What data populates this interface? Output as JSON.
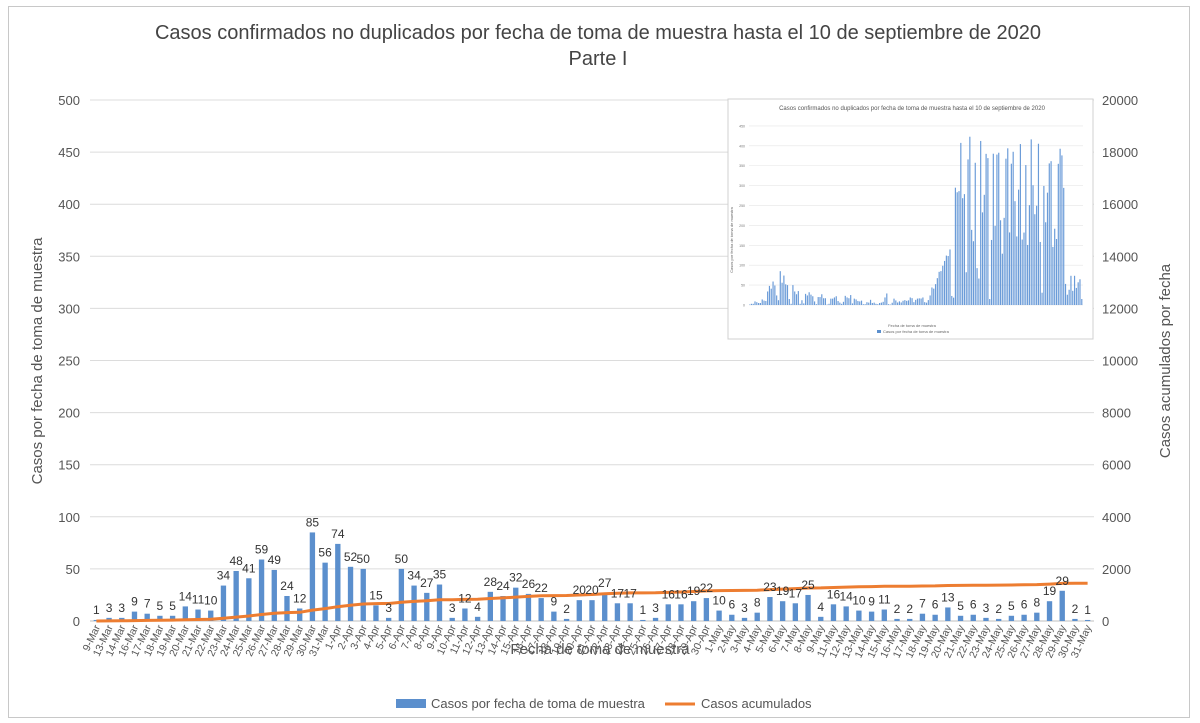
{
  "chart_data": {
    "type": "bar+line",
    "title": "Casos confirmados no duplicados por fecha de toma de muestra hasta el 10 de septiembre de 2020",
    "subtitle": "Parte I",
    "xlabel": "Fecha de toma de muestra",
    "ylabel": "Casos por fecha de toma de muestra",
    "y2label": "Casos acumulados por fecha",
    "ylim": [
      0,
      500
    ],
    "y2lim": [
      0,
      20000
    ],
    "yticks": [
      "0",
      "50",
      "100",
      "150",
      "200",
      "250",
      "300",
      "350",
      "400",
      "450",
      "500"
    ],
    "y2ticks": [
      "0",
      "2000",
      "4000",
      "6000",
      "8000",
      "10000",
      "12000",
      "14000",
      "16000",
      "18000",
      "20000"
    ],
    "grid": true,
    "legend_position": "bottom",
    "categories": [
      "9-Mar",
      "13-Mar",
      "14-Mar",
      "16-Mar",
      "17-Mar",
      "18-Mar",
      "19-Mar",
      "20-Mar",
      "21-Mar",
      "22-Mar",
      "23-Mar",
      "24-Mar",
      "25-Mar",
      "26-Mar",
      "27-Mar",
      "28-Mar",
      "29-Mar",
      "30-Mar",
      "31-Mar",
      "1-Apr",
      "2-Apr",
      "3-Apr",
      "4-Apr",
      "5-Apr",
      "6-Apr",
      "7-Apr",
      "8-Apr",
      "9-Apr",
      "10-Apr",
      "11-Apr",
      "12-Apr",
      "13-Apr",
      "14-Apr",
      "15-Apr",
      "16-Apr",
      "17-Apr",
      "18-Apr",
      "19-Apr",
      "20-Apr",
      "21-Apr",
      "22-Apr",
      "23-Apr",
      "24-Apr",
      "25-Apr",
      "26-Apr",
      "27-Apr",
      "28-Apr",
      "29-Apr",
      "30-Apr",
      "1-May",
      "2-May",
      "3-May",
      "4-May",
      "5-May",
      "6-May",
      "7-May",
      "8-May",
      "9-May",
      "11-May",
      "12-May",
      "13-May",
      "14-May",
      "15-May",
      "16-May",
      "17-May",
      "18-May",
      "19-May",
      "20-May",
      "21-May",
      "22-May",
      "23-May",
      "24-May",
      "25-May",
      "26-May",
      "27-May",
      "28-May",
      "29-May",
      "30-May",
      "31-May"
    ],
    "series": [
      {
        "name": "Casos por fecha de toma de muestra",
        "type": "bar",
        "axis": "left",
        "color": "#5b8fcd",
        "values": [
          1,
          3,
          3,
          9,
          7,
          5,
          5,
          14,
          11,
          10,
          34,
          48,
          41,
          59,
          49,
          24,
          12,
          85,
          56,
          74,
          52,
          50,
          15,
          3,
          50,
          34,
          27,
          35,
          3,
          12,
          4,
          28,
          24,
          32,
          26,
          22,
          9,
          2,
          20,
          20,
          27,
          17,
          17,
          1,
          3,
          16,
          16,
          19,
          22,
          10,
          6,
          3,
          8,
          23,
          19,
          17,
          25,
          4,
          16,
          14,
          10,
          9,
          11,
          2,
          2,
          7,
          6,
          13,
          5,
          6,
          3,
          2,
          5,
          6,
          8,
          19,
          29,
          2,
          1
        ]
      },
      {
        "name": "Casos acumulados",
        "type": "line",
        "axis": "right",
        "color": "#ed7d31",
        "values": [
          1,
          4,
          7,
          16,
          23,
          28,
          33,
          47,
          58,
          68,
          102,
          150,
          191,
          250,
          299,
          323,
          335,
          420,
          476,
          550,
          602,
          652,
          667,
          670,
          720,
          754,
          781,
          816,
          819,
          831,
          835,
          863,
          887,
          919,
          945,
          967,
          976,
          978,
          998,
          1018,
          1045,
          1062,
          1079,
          1080,
          1083,
          1099,
          1115,
          1134,
          1156,
          1166,
          1172,
          1175,
          1183,
          1206,
          1225,
          1242,
          1267,
          1271,
          1287,
          1301,
          1311,
          1320,
          1331,
          1333,
          1335,
          1342,
          1348,
          1361,
          1366,
          1372,
          1375,
          1377,
          1382,
          1388,
          1396,
          1415,
          1444,
          1446,
          1447
        ]
      }
    ],
    "inset": {
      "title": "Casos confirmados no duplicados por fecha de toma de muestra hasta el 10 de septiembre de 2020",
      "xlabel": "Fecha de toma de muestra",
      "ylabel": "Casos por fecha de toma de muestra",
      "legend": "Casos por fecha de toma de muestra",
      "yticks": [
        "0",
        "50",
        "100",
        "150",
        "200",
        "250",
        "300",
        "350",
        "400",
        "450"
      ]
    }
  }
}
